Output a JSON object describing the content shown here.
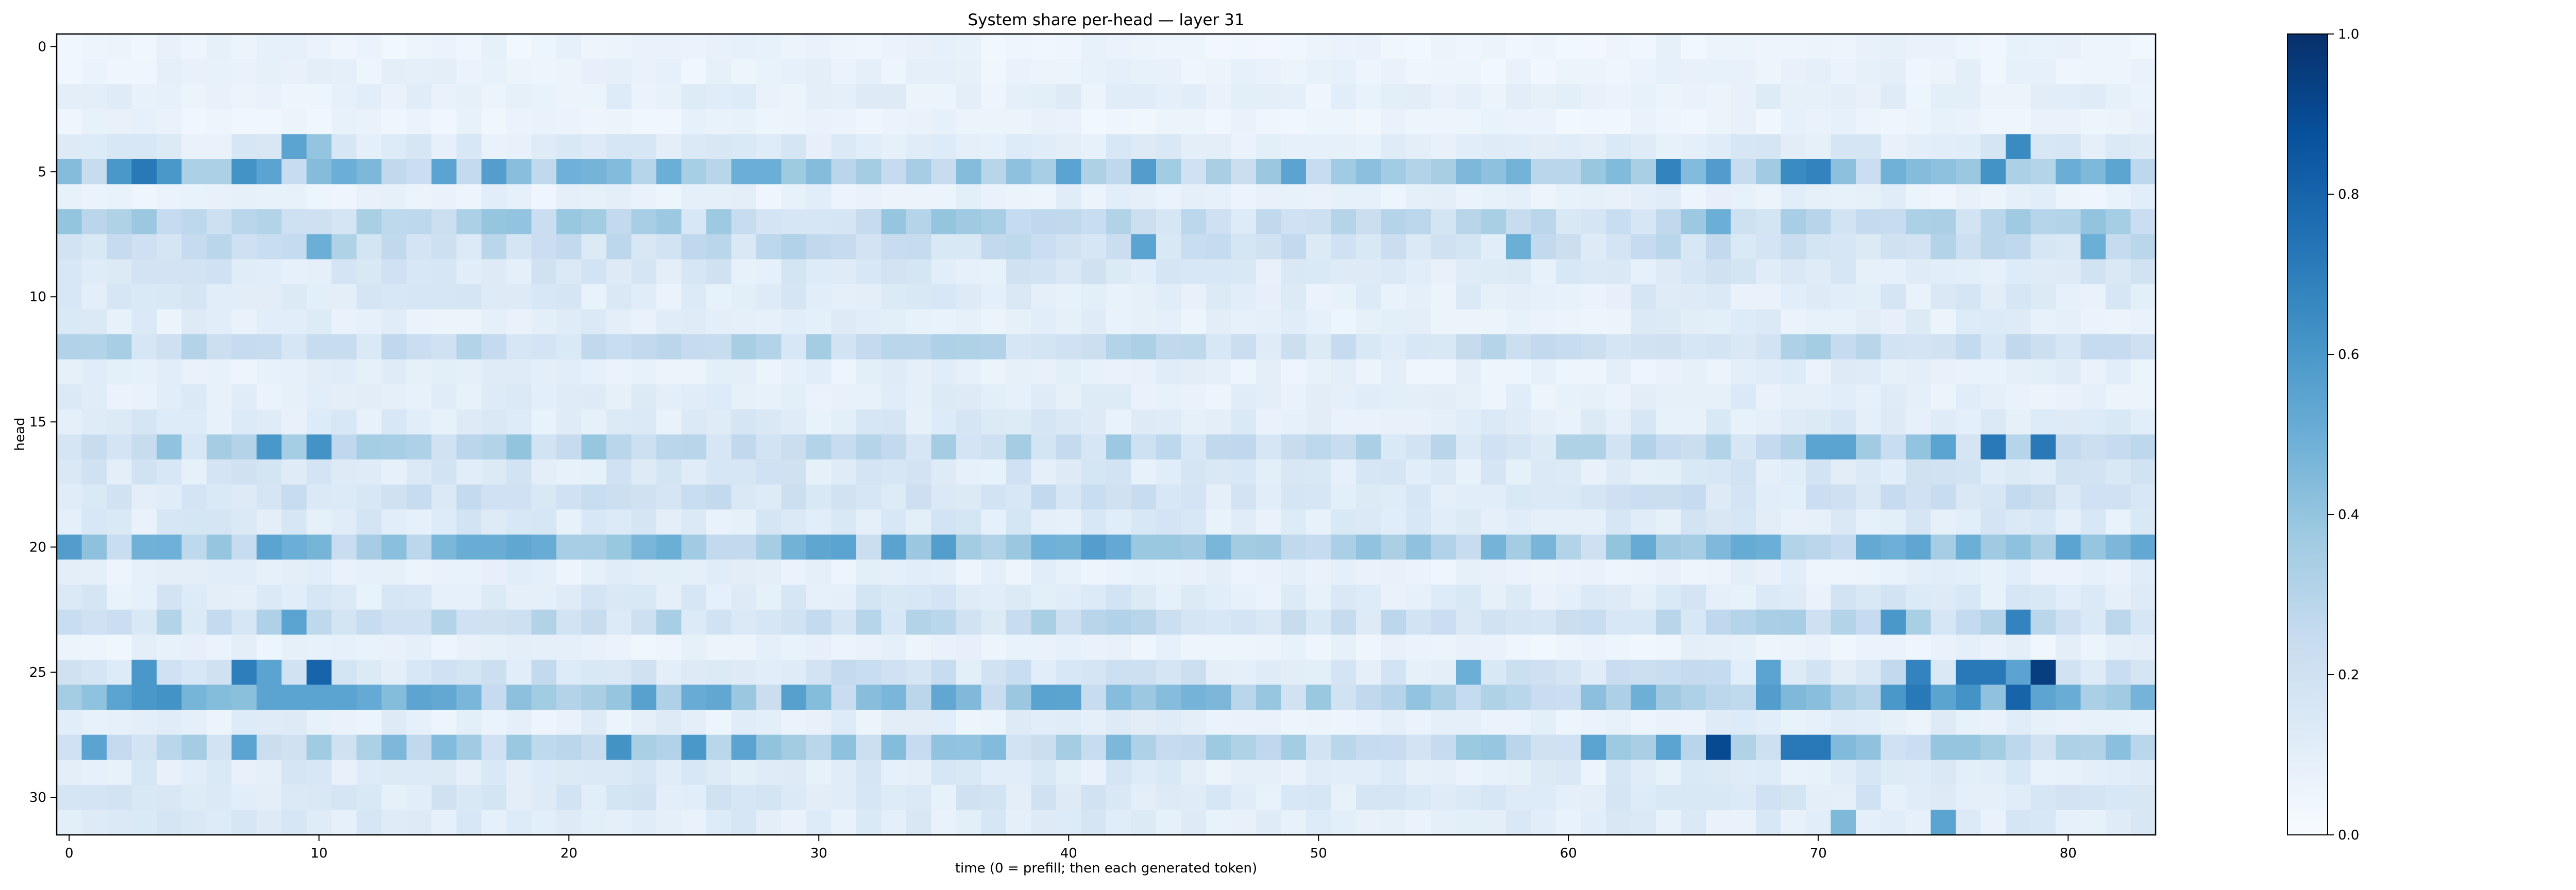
{
  "chart_data": {
    "type": "heatmap",
    "title": "System share per-head — layer 31",
    "xlabel": "time (0 = prefill; then each generated token)",
    "ylabel": "head",
    "n_cols": 84,
    "n_rows": 32,
    "xlim": [
      -0.5,
      83.5
    ],
    "ylim": [
      31.5,
      -0.5
    ],
    "xticks": [
      0,
      10,
      20,
      30,
      40,
      50,
      60,
      70,
      80
    ],
    "yticks": [
      0,
      5,
      10,
      15,
      20,
      25,
      30
    ],
    "colormap": "Blues",
    "colorbar": {
      "vmin": 0.0,
      "vmax": 1.0,
      "ticks": [
        0.0,
        0.2,
        0.4,
        0.6,
        0.8,
        1.0
      ]
    },
    "colors": {
      "low": "#f7fbff",
      "high": "#08306b",
      "axis": "#000000"
    },
    "row_levels": [
      0.06,
      0.07,
      0.09,
      0.06,
      0.12,
      0.4,
      0.08,
      0.28,
      0.22,
      0.14,
      0.12,
      0.1,
      0.25,
      0.09,
      0.1,
      0.12,
      0.28,
      0.14,
      0.18,
      0.13,
      0.4,
      0.08,
      0.13,
      0.24,
      0.07,
      0.18,
      0.4,
      0.09,
      0.32,
      0.12,
      0.14,
      0.12
    ],
    "highlights": [
      {
        "row": 4,
        "col": 9,
        "value": 0.55
      },
      {
        "row": 4,
        "col": 10,
        "value": 0.4
      },
      {
        "row": 4,
        "col": 78,
        "value": 0.65
      },
      {
        "row": 5,
        "col": 2,
        "value": 0.6
      },
      {
        "row": 5,
        "col": 3,
        "value": 0.72
      },
      {
        "row": 5,
        "col": 4,
        "value": 0.6
      },
      {
        "row": 5,
        "col": 7,
        "value": 0.62
      },
      {
        "row": 5,
        "col": 8,
        "value": 0.55
      },
      {
        "row": 5,
        "col": 15,
        "value": 0.55
      },
      {
        "row": 5,
        "col": 27,
        "value": 0.5
      },
      {
        "row": 5,
        "col": 28,
        "value": 0.5
      },
      {
        "row": 5,
        "col": 40,
        "value": 0.55
      },
      {
        "row": 5,
        "col": 49,
        "value": 0.55
      },
      {
        "row": 5,
        "col": 64,
        "value": 0.68
      },
      {
        "row": 5,
        "col": 66,
        "value": 0.58
      },
      {
        "row": 5,
        "col": 69,
        "value": 0.65
      },
      {
        "row": 5,
        "col": 70,
        "value": 0.68
      },
      {
        "row": 5,
        "col": 77,
        "value": 0.62
      },
      {
        "row": 7,
        "col": 66,
        "value": 0.5
      },
      {
        "row": 8,
        "col": 10,
        "value": 0.5
      },
      {
        "row": 8,
        "col": 43,
        "value": 0.55
      },
      {
        "row": 8,
        "col": 58,
        "value": 0.5
      },
      {
        "row": 8,
        "col": 81,
        "value": 0.5
      },
      {
        "row": 16,
        "col": 8,
        "value": 0.6
      },
      {
        "row": 16,
        "col": 10,
        "value": 0.62
      },
      {
        "row": 16,
        "col": 70,
        "value": 0.55
      },
      {
        "row": 16,
        "col": 71,
        "value": 0.55
      },
      {
        "row": 16,
        "col": 75,
        "value": 0.55
      },
      {
        "row": 16,
        "col": 77,
        "value": 0.72
      },
      {
        "row": 16,
        "col": 79,
        "value": 0.72
      },
      {
        "row": 20,
        "col": 8,
        "value": 0.55
      },
      {
        "row": 20,
        "col": 9,
        "value": 0.5
      },
      {
        "row": 20,
        "col": 80,
        "value": 0.55
      },
      {
        "row": 23,
        "col": 9,
        "value": 0.55
      },
      {
        "row": 23,
        "col": 73,
        "value": 0.6
      },
      {
        "row": 23,
        "col": 78,
        "value": 0.68
      },
      {
        "row": 25,
        "col": 3,
        "value": 0.6
      },
      {
        "row": 25,
        "col": 7,
        "value": 0.7
      },
      {
        "row": 25,
        "col": 8,
        "value": 0.55
      },
      {
        "row": 25,
        "col": 10,
        "value": 0.8
      },
      {
        "row": 25,
        "col": 56,
        "value": 0.5
      },
      {
        "row": 25,
        "col": 68,
        "value": 0.55
      },
      {
        "row": 25,
        "col": 74,
        "value": 0.68
      },
      {
        "row": 25,
        "col": 76,
        "value": 0.72
      },
      {
        "row": 25,
        "col": 77,
        "value": 0.72
      },
      {
        "row": 25,
        "col": 78,
        "value": 0.55
      },
      {
        "row": 25,
        "col": 79,
        "value": 0.95
      },
      {
        "row": 26,
        "col": 2,
        "value": 0.55
      },
      {
        "row": 26,
        "col": 3,
        "value": 0.6
      },
      {
        "row": 26,
        "col": 4,
        "value": 0.62
      },
      {
        "row": 26,
        "col": 8,
        "value": 0.55
      },
      {
        "row": 26,
        "col": 9,
        "value": 0.55
      },
      {
        "row": 26,
        "col": 10,
        "value": 0.55
      },
      {
        "row": 26,
        "col": 11,
        "value": 0.55
      },
      {
        "row": 26,
        "col": 73,
        "value": 0.6
      },
      {
        "row": 26,
        "col": 74,
        "value": 0.72
      },
      {
        "row": 26,
        "col": 76,
        "value": 0.62
      },
      {
        "row": 26,
        "col": 78,
        "value": 0.8
      },
      {
        "row": 28,
        "col": 1,
        "value": 0.55
      },
      {
        "row": 28,
        "col": 7,
        "value": 0.55
      },
      {
        "row": 28,
        "col": 22,
        "value": 0.62
      },
      {
        "row": 28,
        "col": 25,
        "value": 0.6
      },
      {
        "row": 28,
        "col": 27,
        "value": 0.55
      },
      {
        "row": 28,
        "col": 61,
        "value": 0.55
      },
      {
        "row": 28,
        "col": 64,
        "value": 0.55
      },
      {
        "row": 28,
        "col": 66,
        "value": 0.9
      },
      {
        "row": 28,
        "col": 69,
        "value": 0.72
      },
      {
        "row": 28,
        "col": 70,
        "value": 0.72
      },
      {
        "row": 31,
        "col": 71,
        "value": 0.45
      },
      {
        "row": 31,
        "col": 75,
        "value": 0.55
      }
    ]
  }
}
